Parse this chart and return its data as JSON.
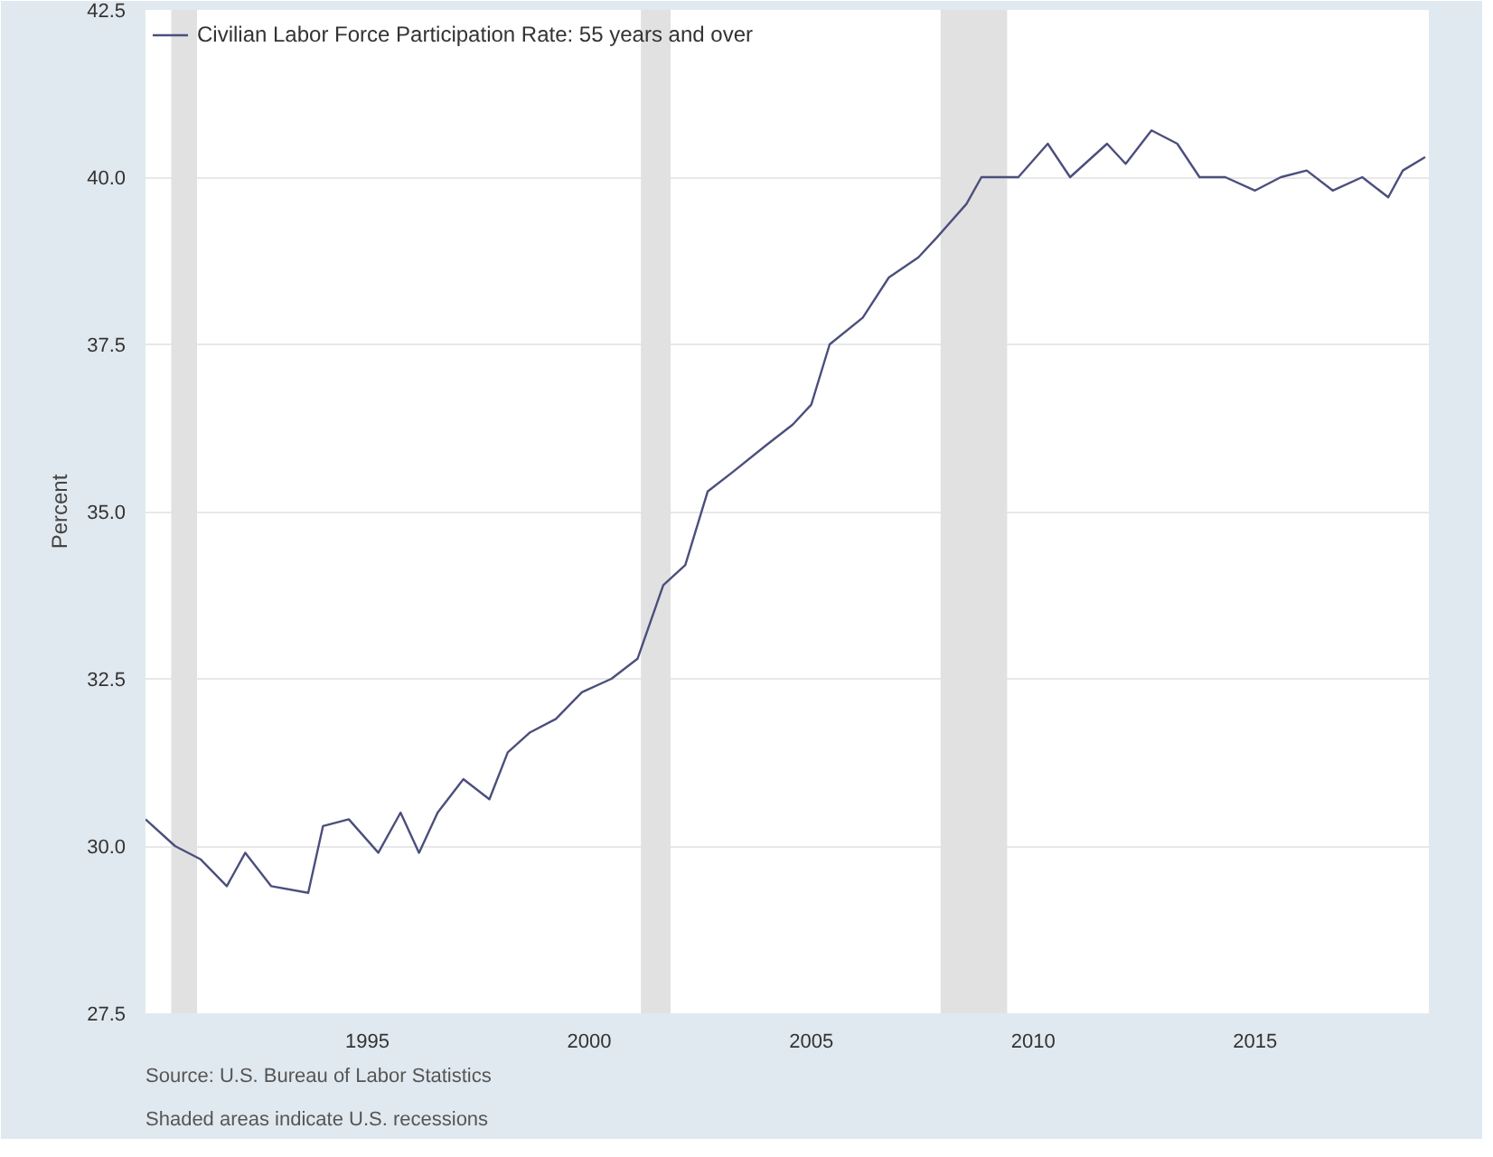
{
  "chart_data": {
    "type": "line",
    "ylabel": "Percent",
    "x": [
      "1990-01",
      "1990-09",
      "1991-04",
      "1991-11",
      "1992-04",
      "1992-11",
      "1993-09",
      "1994-01",
      "1994-08",
      "1995-04",
      "1995-10",
      "1996-03",
      "1996-08",
      "1997-03",
      "1997-10",
      "1998-03",
      "1998-09",
      "1999-04",
      "1999-11",
      "2000-07",
      "2001-02",
      "2001-09",
      "2002-03",
      "2002-09",
      "2003-04",
      "2004-01",
      "2004-08",
      "2005-01",
      "2005-06",
      "2006-03",
      "2006-10",
      "2007-06",
      "2007-11",
      "2008-07",
      "2008-11",
      "2009-09",
      "2010-05",
      "2010-11",
      "2011-09",
      "2012-02",
      "2012-09",
      "2013-04",
      "2013-10",
      "2014-05",
      "2015-01",
      "2015-08",
      "2016-03",
      "2016-10",
      "2017-06",
      "2018-01",
      "2018-05",
      "2018-11"
    ],
    "series": [
      {
        "name": "Civilian Labor Force Participation Rate: 55 years and over",
        "color": "#4b4f7c",
        "values": [
          30.4,
          30.0,
          29.8,
          29.4,
          29.9,
          29.4,
          29.3,
          30.3,
          30.4,
          29.9,
          30.5,
          29.9,
          30.5,
          31.0,
          30.7,
          31.4,
          31.7,
          31.9,
          32.3,
          32.5,
          32.8,
          33.9,
          34.2,
          35.3,
          35.6,
          36.0,
          36.3,
          36.6,
          37.5,
          37.9,
          38.5,
          38.8,
          39.1,
          39.6,
          40.0,
          40.0,
          40.5,
          40.0,
          40.5,
          40.2,
          40.7,
          40.5,
          40.0,
          40.0,
          39.8,
          40.0,
          40.1,
          39.8,
          40.0,
          39.7,
          40.1,
          40.3
        ]
      }
    ],
    "xlim": [
      "1990-01",
      "2018-12"
    ],
    "xticks": [
      {
        "value": "1995-01",
        "label": "1995"
      },
      {
        "value": "2000-01",
        "label": "2000"
      },
      {
        "value": "2005-01",
        "label": "2005"
      },
      {
        "value": "2010-01",
        "label": "2010"
      },
      {
        "value": "2015-01",
        "label": "2015"
      }
    ],
    "ylim": [
      27.5,
      42.5
    ],
    "yticks": [
      {
        "value": 27.5,
        "label": "27.5"
      },
      {
        "value": 30,
        "label": "30.0"
      },
      {
        "value": 32.5,
        "label": "32.5"
      },
      {
        "value": 35,
        "label": "35.0"
      },
      {
        "value": 37.5,
        "label": "37.5"
      },
      {
        "value": 40,
        "label": "40.0"
      },
      {
        "value": 42.5,
        "label": "42.5"
      }
    ],
    "bands": [
      {
        "axis": "x",
        "from": "1990-08",
        "to": "1991-03",
        "color": "#e1e1e1"
      },
      {
        "axis": "x",
        "from": "2001-03",
        "to": "2001-11",
        "color": "#e1e1e1"
      },
      {
        "axis": "x",
        "from": "2007-12",
        "to": "2009-06",
        "color": "#e1e1e1"
      }
    ],
    "grid": "y",
    "legend": "top left",
    "line_style": "solid",
    "annotations": [
      "Shaded areas indicate U.S. recessions",
      "Source: U.S. Bureau of Labor Statistics"
    ]
  }
}
